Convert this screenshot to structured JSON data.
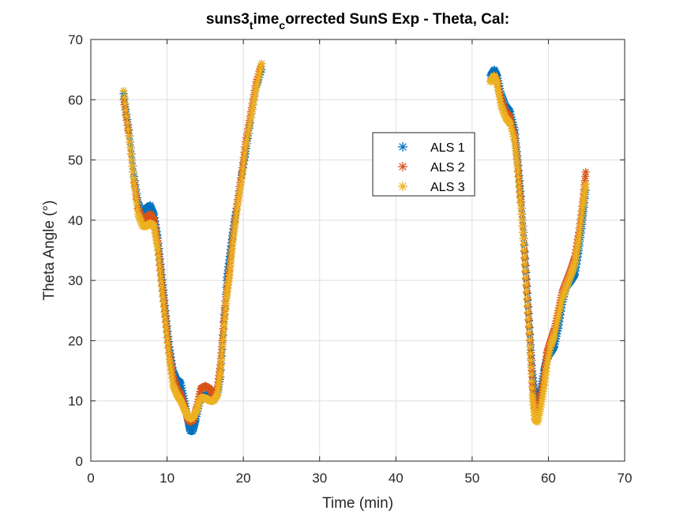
{
  "chart_data": {
    "type": "scatter",
    "title": {
      "base": "suns3",
      "sub1": "t",
      "mid": "ime",
      "sub2": "c",
      "rest": "orrected SunS Exp - Theta, Cal:"
    },
    "xlabel": "Time (min)",
    "ylabel": "Theta Angle (°)",
    "xlim": [
      0,
      70
    ],
    "ylim": [
      0,
      70
    ],
    "xticks": [
      0,
      10,
      20,
      30,
      40,
      50,
      60,
      70
    ],
    "yticks": [
      0,
      10,
      20,
      30,
      40,
      50,
      60,
      70
    ],
    "grid": true,
    "legend_position": "upper-middle-right",
    "marker": "asterisk",
    "series": [
      {
        "name": "ALS 1",
        "color": "#0072BD",
        "segments": [
          [
            [
              4.3,
              61
            ],
            [
              5.0,
              55
            ],
            [
              5.6,
              48
            ],
            [
              6.2,
              43
            ],
            [
              6.8,
              41
            ],
            [
              7.3,
              42
            ],
            [
              7.8,
              42.5
            ],
            [
              8.3,
              41
            ],
            [
              8.8,
              37
            ],
            [
              9.3,
              31
            ],
            [
              9.8,
              25
            ],
            [
              10.3,
              19
            ],
            [
              10.8,
              15
            ],
            [
              11.3,
              13.5
            ],
            [
              11.8,
              13
            ],
            [
              12.3,
              10
            ],
            [
              12.7,
              7
            ],
            [
              13.0,
              5
            ],
            [
              13.4,
              5
            ],
            [
              13.8,
              7
            ],
            [
              14.3,
              10
            ],
            [
              15.0,
              11
            ],
            [
              15.6,
              11
            ],
            [
              16.1,
              10.5
            ],
            [
              16.6,
              11
            ],
            [
              17.0,
              14
            ],
            [
              17.4,
              22
            ],
            [
              17.8,
              30
            ],
            [
              18.2,
              34
            ],
            [
              18.6,
              38
            ],
            [
              19.1,
              42
            ],
            [
              19.7,
              47
            ],
            [
              20.3,
              51
            ],
            [
              21.0,
              57
            ],
            [
              21.7,
              62
            ],
            [
              22.4,
              65
            ]
          ],
          [
            [
              52.4,
              64
            ],
            [
              52.9,
              65
            ],
            [
              53.3,
              64
            ],
            [
              53.8,
              61
            ],
            [
              54.4,
              59
            ],
            [
              55.0,
              58
            ],
            [
              55.6,
              55
            ],
            [
              56.0,
              50
            ],
            [
              56.4,
              44
            ],
            [
              56.8,
              37
            ],
            [
              57.2,
              29
            ],
            [
              57.6,
              21
            ],
            [
              57.9,
              15
            ],
            [
              58.2,
              11
            ],
            [
              58.6,
              10
            ],
            [
              59.0,
              12
            ],
            [
              59.4,
              15
            ],
            [
              59.8,
              17
            ],
            [
              60.3,
              18
            ],
            [
              60.8,
              19
            ],
            [
              61.3,
              22
            ],
            [
              61.8,
              26
            ],
            [
              62.4,
              29
            ],
            [
              63.0,
              30
            ],
            [
              63.5,
              31
            ],
            [
              64.0,
              35
            ],
            [
              64.5,
              40
            ],
            [
              64.9,
              45
            ]
          ]
        ]
      },
      {
        "name": "ALS 2",
        "color": "#D95319",
        "segments": [
          [
            [
              4.3,
              60
            ],
            [
              5.0,
              54
            ],
            [
              5.6,
              47
            ],
            [
              6.2,
              42
            ],
            [
              6.8,
              40
            ],
            [
              7.3,
              40.5
            ],
            [
              7.8,
              41
            ],
            [
              8.3,
              40
            ],
            [
              8.8,
              36
            ],
            [
              9.3,
              30
            ],
            [
              9.8,
              24
            ],
            [
              10.3,
              18
            ],
            [
              10.8,
              14
            ],
            [
              11.3,
              12
            ],
            [
              11.8,
              11
            ],
            [
              12.3,
              9
            ],
            [
              12.7,
              7
            ],
            [
              13.1,
              6.5
            ],
            [
              13.5,
              7
            ],
            [
              13.9,
              9
            ],
            [
              14.4,
              12
            ],
            [
              15.0,
              12.5
            ],
            [
              15.6,
              12
            ],
            [
              16.1,
              11
            ],
            [
              16.6,
              12
            ],
            [
              17.0,
              16
            ],
            [
              17.4,
              23
            ],
            [
              17.8,
              28
            ],
            [
              18.2,
              32
            ],
            [
              18.6,
              37
            ],
            [
              19.1,
              42
            ],
            [
              19.7,
              47
            ],
            [
              20.3,
              53
            ],
            [
              21.0,
              58
            ],
            [
              21.7,
              63
            ],
            [
              22.4,
              66
            ]
          ],
          [
            [
              52.4,
              63
            ],
            [
              52.9,
              64
            ],
            [
              53.3,
              63
            ],
            [
              53.8,
              60
            ],
            [
              54.4,
              58
            ],
            [
              55.0,
              57
            ],
            [
              55.6,
              54
            ],
            [
              56.0,
              49
            ],
            [
              56.4,
              43
            ],
            [
              56.8,
              36
            ],
            [
              57.2,
              28
            ],
            [
              57.6,
              20
            ],
            [
              57.9,
              13
            ],
            [
              58.2,
              9
            ],
            [
              58.6,
              8
            ],
            [
              59.0,
              11
            ],
            [
              59.4,
              14
            ],
            [
              59.8,
              18
            ],
            [
              60.3,
              20
            ],
            [
              60.8,
              22
            ],
            [
              61.3,
              25
            ],
            [
              61.8,
              28
            ],
            [
              62.4,
              30
            ],
            [
              63.0,
              32
            ],
            [
              63.5,
              34
            ],
            [
              64.0,
              38
            ],
            [
              64.5,
              43
            ],
            [
              64.9,
              48
            ]
          ]
        ]
      },
      {
        "name": "ALS 3",
        "color": "#EDB120",
        "segments": [
          [
            [
              4.3,
              61.5
            ],
            [
              5.0,
              54
            ],
            [
              5.6,
              47
            ],
            [
              6.2,
              41
            ],
            [
              6.8,
              39
            ],
            [
              7.3,
              39
            ],
            [
              7.8,
              39.5
            ],
            [
              8.3,
              39
            ],
            [
              8.8,
              35
            ],
            [
              9.3,
              29
            ],
            [
              9.8,
              23
            ],
            [
              10.3,
              17
            ],
            [
              10.8,
              12.5
            ],
            [
              11.3,
              11
            ],
            [
              11.8,
              10
            ],
            [
              12.3,
              8.5
            ],
            [
              12.7,
              7.5
            ],
            [
              13.1,
              7
            ],
            [
              13.5,
              7.5
            ],
            [
              13.9,
              8.5
            ],
            [
              14.4,
              10.5
            ],
            [
              15.0,
              10.5
            ],
            [
              15.6,
              10
            ],
            [
              16.1,
              10
            ],
            [
              16.6,
              11
            ],
            [
              17.0,
              15
            ],
            [
              17.4,
              21
            ],
            [
              17.8,
              27
            ],
            [
              18.2,
              31
            ],
            [
              18.6,
              36
            ],
            [
              19.1,
              41
            ],
            [
              19.7,
              46
            ],
            [
              20.3,
              52
            ],
            [
              21.0,
              57
            ],
            [
              21.7,
              62
            ],
            [
              22.4,
              66
            ]
          ],
          [
            [
              52.4,
              63
            ],
            [
              52.9,
              64
            ],
            [
              53.3,
              62.5
            ],
            [
              53.8,
              59
            ],
            [
              54.4,
              57
            ],
            [
              55.0,
              56
            ],
            [
              55.6,
              53
            ],
            [
              56.0,
              48
            ],
            [
              56.4,
              42
            ],
            [
              56.8,
              35
            ],
            [
              57.2,
              27
            ],
            [
              57.6,
              19
            ],
            [
              57.9,
              11
            ],
            [
              58.2,
              7
            ],
            [
              58.6,
              6.5
            ],
            [
              59.0,
              9
            ],
            [
              59.4,
              12
            ],
            [
              59.8,
              16
            ],
            [
              60.3,
              19
            ],
            [
              60.8,
              21
            ],
            [
              61.3,
              24
            ],
            [
              61.8,
              27
            ],
            [
              62.4,
              29
            ],
            [
              63.0,
              31
            ],
            [
              63.5,
              33
            ],
            [
              64.0,
              37
            ],
            [
              64.5,
              42
            ],
            [
              64.9,
              46
            ]
          ]
        ]
      }
    ]
  }
}
